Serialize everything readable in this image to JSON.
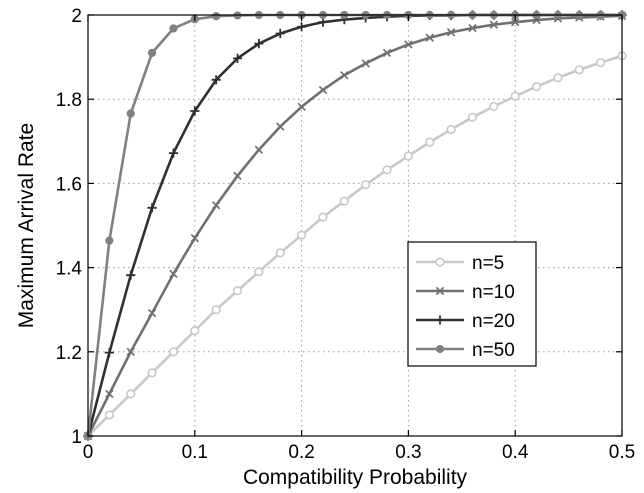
{
  "chart_data": {
    "type": "line",
    "title": "",
    "xlabel": "Compatibility Probability",
    "ylabel": "Maximum Arrival Rate",
    "xlim": [
      0,
      0.5
    ],
    "ylim": [
      1,
      2
    ],
    "xticks": [
      0,
      0.1,
      0.2,
      0.3,
      0.4,
      0.5
    ],
    "xtick_labels": [
      "0",
      "0.1",
      "0.2",
      "0.3",
      "0.4",
      "0.5"
    ],
    "yticks": [
      1,
      1.2,
      1.4,
      1.6,
      1.8,
      2
    ],
    "ytick_labels": [
      "1",
      "1.2",
      "1.4",
      "1.6",
      "1.8",
      "2"
    ],
    "grid": true,
    "legend_position": "center-right",
    "x": [
      0,
      0.02,
      0.04,
      0.06,
      0.08,
      0.1,
      0.12,
      0.14,
      0.16,
      0.18,
      0.2,
      0.22,
      0.24,
      0.26,
      0.28,
      0.3,
      0.32,
      0.34,
      0.36,
      0.38,
      0.4,
      0.42,
      0.44,
      0.46,
      0.48,
      0.5
    ],
    "series": [
      {
        "name": "n=5",
        "color": "#c8c8c8",
        "marker": "circle-open",
        "values": [
          1.0,
          1.05,
          1.1,
          1.15,
          1.2,
          1.25,
          1.3,
          1.345,
          1.39,
          1.435,
          1.477,
          1.52,
          1.558,
          1.597,
          1.632,
          1.665,
          1.698,
          1.728,
          1.757,
          1.783,
          1.807,
          1.83,
          1.851,
          1.87,
          1.887,
          1.903
        ]
      },
      {
        "name": "n=10",
        "color": "#707070",
        "marker": "x",
        "values": [
          1.0,
          1.1,
          1.2,
          1.292,
          1.385,
          1.47,
          1.548,
          1.618,
          1.68,
          1.735,
          1.782,
          1.822,
          1.857,
          1.885,
          1.91,
          1.93,
          1.946,
          1.959,
          1.969,
          1.977,
          1.983,
          1.988,
          1.992,
          1.994,
          1.996,
          1.998
        ]
      },
      {
        "name": "n=20",
        "color": "#303030",
        "marker": "plus",
        "values": [
          1.0,
          1.198,
          1.382,
          1.542,
          1.672,
          1.772,
          1.846,
          1.897,
          1.932,
          1.956,
          1.972,
          1.983,
          1.989,
          1.993,
          1.996,
          1.998,
          1.999,
          1.999,
          2.0,
          2.0,
          2.0,
          2.0,
          2.0,
          2.0,
          2.0,
          2.0
        ]
      },
      {
        "name": "n=50",
        "color": "#808080",
        "marker": "dot",
        "values": [
          1.0,
          1.464,
          1.766,
          1.91,
          1.968,
          1.99,
          1.997,
          1.999,
          2.0,
          2.0,
          2.0,
          2.0,
          2.0,
          2.0,
          2.0,
          2.0,
          2.0,
          2.0,
          2.0,
          2.0,
          2.0,
          2.0,
          2.0,
          2.0,
          2.0,
          2.0
        ]
      }
    ]
  }
}
